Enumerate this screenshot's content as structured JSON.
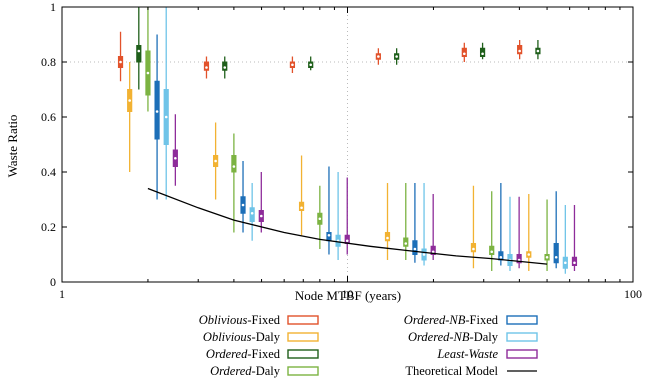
{
  "chart_data": {
    "type": "box",
    "xlabel": "Node MTBF (years)",
    "ylabel": "Waste Ratio",
    "x_scale": "log",
    "xlim": [
      1,
      100
    ],
    "ylim": [
      0,
      1
    ],
    "x_ticks": [
      1,
      10,
      100
    ],
    "x_tick_labels": [
      "1",
      "10",
      "100"
    ],
    "y_ticks": [
      0,
      0.2,
      0.4,
      0.6,
      0.8,
      1
    ],
    "y_tick_labels": [
      "0",
      "0.2",
      "0.4",
      "0.6",
      "0.8",
      "1"
    ],
    "grid": "dotted at x=10 and y=0.8",
    "legend_position": "bottom",
    "groups_x": [
      2,
      4,
      8,
      16,
      32,
      50
    ],
    "series": [
      {
        "name_em": "Oblivious",
        "name_rest": "-Fixed",
        "color": "#e2522b",
        "boxes": [
          {
            "min": 0.73,
            "q1": 0.78,
            "median": 0.8,
            "q3": 0.82,
            "max": 0.91
          },
          {
            "min": 0.74,
            "q1": 0.77,
            "median": 0.78,
            "q3": 0.8,
            "max": 0.82
          },
          {
            "min": 0.76,
            "q1": 0.78,
            "median": 0.79,
            "q3": 0.8,
            "max": 0.82
          },
          {
            "min": 0.79,
            "q1": 0.81,
            "median": 0.82,
            "q3": 0.83,
            "max": 0.85
          },
          {
            "min": 0.8,
            "q1": 0.82,
            "median": 0.83,
            "q3": 0.85,
            "max": 0.87
          },
          {
            "min": 0.81,
            "q1": 0.83,
            "median": 0.84,
            "q3": 0.86,
            "max": 0.88
          }
        ]
      },
      {
        "name_em": "Oblivious",
        "name_rest": "-Daly",
        "color": "#f2b232",
        "boxes": [
          {
            "min": 0.4,
            "q1": 0.62,
            "median": 0.66,
            "q3": 0.7,
            "max": 0.8
          },
          {
            "min": 0.3,
            "q1": 0.42,
            "median": 0.44,
            "q3": 0.46,
            "max": 0.58
          },
          {
            "min": 0.17,
            "q1": 0.26,
            "median": 0.27,
            "q3": 0.29,
            "max": 0.46
          },
          {
            "min": 0.08,
            "q1": 0.15,
            "median": 0.16,
            "q3": 0.18,
            "max": 0.36
          },
          {
            "min": 0.05,
            "q1": 0.11,
            "median": 0.12,
            "q3": 0.14,
            "max": 0.35
          },
          {
            "min": 0.04,
            "q1": 0.09,
            "median": 0.1,
            "q3": 0.11,
            "max": 0.32
          }
        ]
      },
      {
        "name_em": "Ordered",
        "name_rest": "-Fixed",
        "color": "#1f5f1a",
        "boxes": [
          {
            "min": 0.7,
            "q1": 0.8,
            "median": 0.84,
            "q3": 0.86,
            "max": 1.0
          },
          {
            "min": 0.74,
            "q1": 0.77,
            "median": 0.78,
            "q3": 0.8,
            "max": 0.82
          },
          {
            "min": 0.77,
            "q1": 0.78,
            "median": 0.79,
            "q3": 0.8,
            "max": 0.82
          },
          {
            "min": 0.79,
            "q1": 0.81,
            "median": 0.82,
            "q3": 0.83,
            "max": 0.85
          },
          {
            "min": 0.81,
            "q1": 0.82,
            "median": 0.83,
            "q3": 0.85,
            "max": 0.87
          },
          {
            "min": 0.81,
            "q1": 0.83,
            "median": 0.84,
            "q3": 0.85,
            "max": 0.88
          }
        ]
      },
      {
        "name_em": "Ordered",
        "name_rest": "-Daly",
        "color": "#7cb342",
        "boxes": [
          {
            "min": 0.62,
            "q1": 0.68,
            "median": 0.76,
            "q3": 0.84,
            "max": 1.0
          },
          {
            "min": 0.18,
            "q1": 0.4,
            "median": 0.42,
            "q3": 0.46,
            "max": 0.54
          },
          {
            "min": 0.12,
            "q1": 0.21,
            "median": 0.23,
            "q3": 0.25,
            "max": 0.35
          },
          {
            "min": 0.08,
            "q1": 0.13,
            "median": 0.14,
            "q3": 0.16,
            "max": 0.36
          },
          {
            "min": 0.04,
            "q1": 0.1,
            "median": 0.11,
            "q3": 0.13,
            "max": 0.33
          },
          {
            "min": 0.04,
            "q1": 0.08,
            "median": 0.09,
            "q3": 0.1,
            "max": 0.3
          }
        ]
      },
      {
        "name_em": "Ordered-NB",
        "name_rest": "-Fixed",
        "color": "#1d6fb8",
        "boxes": [
          {
            "min": 0.3,
            "q1": 0.52,
            "median": 0.62,
            "q3": 0.73,
            "max": 0.9
          },
          {
            "min": 0.18,
            "q1": 0.25,
            "median": 0.28,
            "q3": 0.31,
            "max": 0.44
          },
          {
            "min": 0.1,
            "q1": 0.15,
            "median": 0.17,
            "q3": 0.18,
            "max": 0.42
          },
          {
            "min": 0.07,
            "q1": 0.1,
            "median": 0.12,
            "q3": 0.15,
            "max": 0.36
          },
          {
            "min": 0.06,
            "q1": 0.08,
            "median": 0.09,
            "q3": 0.11,
            "max": 0.36
          },
          {
            "min": 0.05,
            "q1": 0.07,
            "median": 0.09,
            "q3": 0.14,
            "max": 0.33
          }
        ]
      },
      {
        "name_em": "Ordered-NB",
        "name_rest": "-Daly",
        "color": "#6fc4e8",
        "boxes": [
          {
            "min": 0.3,
            "q1": 0.5,
            "median": 0.6,
            "q3": 0.7,
            "max": 1.0
          },
          {
            "min": 0.15,
            "q1": 0.22,
            "median": 0.25,
            "q3": 0.27,
            "max": 0.36
          },
          {
            "min": 0.08,
            "q1": 0.13,
            "median": 0.15,
            "q3": 0.17,
            "max": 0.4
          },
          {
            "min": 0.06,
            "q1": 0.08,
            "median": 0.1,
            "q3": 0.12,
            "max": 0.36
          },
          {
            "min": 0.04,
            "q1": 0.06,
            "median": 0.08,
            "q3": 0.1,
            "max": 0.31
          },
          {
            "min": 0.03,
            "q1": 0.05,
            "median": 0.07,
            "q3": 0.09,
            "max": 0.28
          }
        ]
      },
      {
        "name_em": "Least-Waste",
        "name_rest": "",
        "color": "#8e2c9a",
        "boxes": [
          {
            "min": 0.35,
            "q1": 0.42,
            "median": 0.45,
            "q3": 0.48,
            "max": 0.61
          },
          {
            "min": 0.18,
            "q1": 0.22,
            "median": 0.24,
            "q3": 0.26,
            "max": 0.4
          },
          {
            "min": 0.1,
            "q1": 0.14,
            "median": 0.15,
            "q3": 0.17,
            "max": 0.38
          },
          {
            "min": 0.08,
            "q1": 0.1,
            "median": 0.11,
            "q3": 0.13,
            "max": 0.32
          },
          {
            "min": 0.05,
            "q1": 0.07,
            "median": 0.08,
            "q3": 0.1,
            "max": 0.31
          },
          {
            "min": 0.04,
            "q1": 0.06,
            "median": 0.07,
            "q3": 0.09,
            "max": 0.28
          }
        ]
      }
    ],
    "theoretical_model": {
      "name": "Theoretical Model",
      "color": "#000000",
      "x": [
        2,
        3,
        4,
        6,
        8,
        12,
        16,
        24,
        32,
        40,
        50
      ],
      "y": [
        0.34,
        0.27,
        0.225,
        0.18,
        0.155,
        0.13,
        0.115,
        0.095,
        0.085,
        0.075,
        0.065
      ]
    }
  }
}
